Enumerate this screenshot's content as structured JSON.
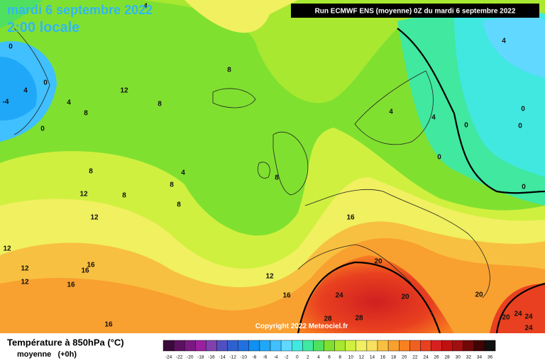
{
  "header": {
    "date": "mardi 6 septembre 2022",
    "time": "2:00 locale",
    "run": "Run ECMWF ENS (moyenne) 0Z du mardi 6 septembre 2022",
    "copyright": "Copyright 2022 Meteociel.fr"
  },
  "legend": {
    "title": "Température à 850hPa (°C)",
    "subtitle": "moyenne   (+0h)",
    "scale": [
      -24,
      -22,
      -20,
      -18,
      -16,
      -14,
      -12,
      -10,
      -8,
      -6,
      -4,
      -2,
      0,
      2,
      4,
      6,
      8,
      10,
      12,
      14,
      16,
      18,
      20,
      22,
      24,
      26,
      28,
      30,
      32,
      34,
      36
    ],
    "colors": [
      "#3a0a3a",
      "#5c1060",
      "#7a1a80",
      "#9a20a0",
      "#8040b0",
      "#5050c0",
      "#3060d0",
      "#2070e0",
      "#1090f0",
      "#20a8f8",
      "#40c0ff",
      "#60d8ff",
      "#40e8e0",
      "#40e8a0",
      "#50e060",
      "#80e030",
      "#a8e830",
      "#d0f040",
      "#f0f060",
      "#f8e060",
      "#f8c040",
      "#f8a030",
      "#f88020",
      "#f06020",
      "#e84020",
      "#d82020",
      "#c01010",
      "#a01010",
      "#700808",
      "#400404",
      "#101010"
    ]
  },
  "contour_labels": [
    0,
    4,
    8,
    12,
    4,
    8,
    8,
    0,
    4,
    -4,
    0,
    8,
    12,
    8,
    12,
    4,
    8,
    8,
    8,
    12,
    12,
    16,
    16,
    12,
    16,
    16,
    12,
    16,
    16,
    20,
    24,
    20,
    28,
    28,
    20,
    20,
    24,
    24,
    24,
    4,
    0,
    0,
    0,
    0,
    0,
    4,
    4
  ]
}
